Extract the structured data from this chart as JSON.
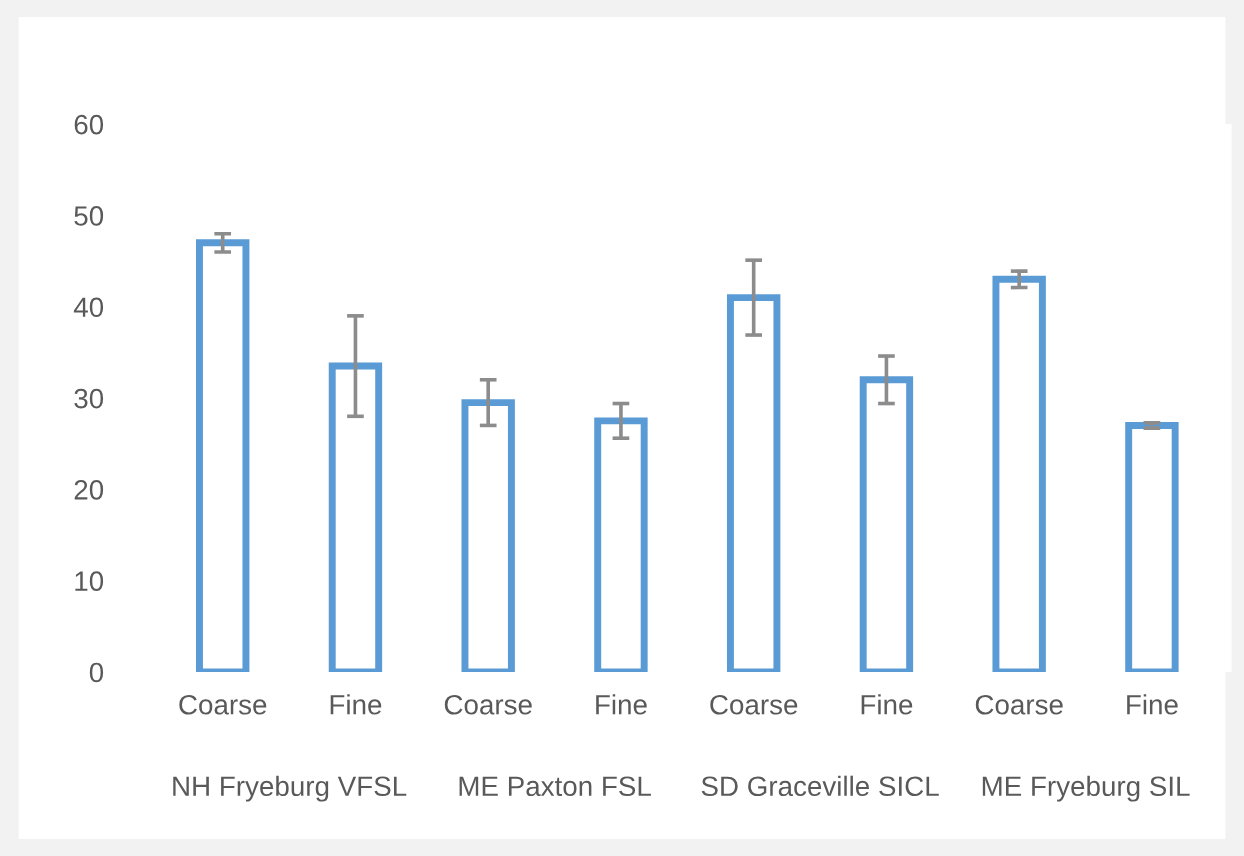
{
  "chart_data": {
    "type": "bar",
    "categories": [
      "Coarse",
      "Fine",
      "Coarse",
      "Fine",
      "Coarse",
      "Fine",
      "Coarse",
      "Fine"
    ],
    "values": [
      47,
      33.5,
      29.5,
      27.5,
      41,
      32,
      43,
      27
    ],
    "errors": [
      1,
      5.5,
      2.5,
      1.9,
      4.1,
      2.6,
      0.9,
      0.3
    ],
    "color": "#5b9bd5",
    "ylim": [
      0,
      60
    ],
    "yticks": [
      0,
      10,
      20,
      30,
      40,
      50,
      60
    ],
    "annotations": [
      "NH Fryeburg VFSL",
      "ME Paxton FSL",
      "SD Graceville SICL",
      "ME Fryeburg SIL"
    ],
    "grid": false
  }
}
